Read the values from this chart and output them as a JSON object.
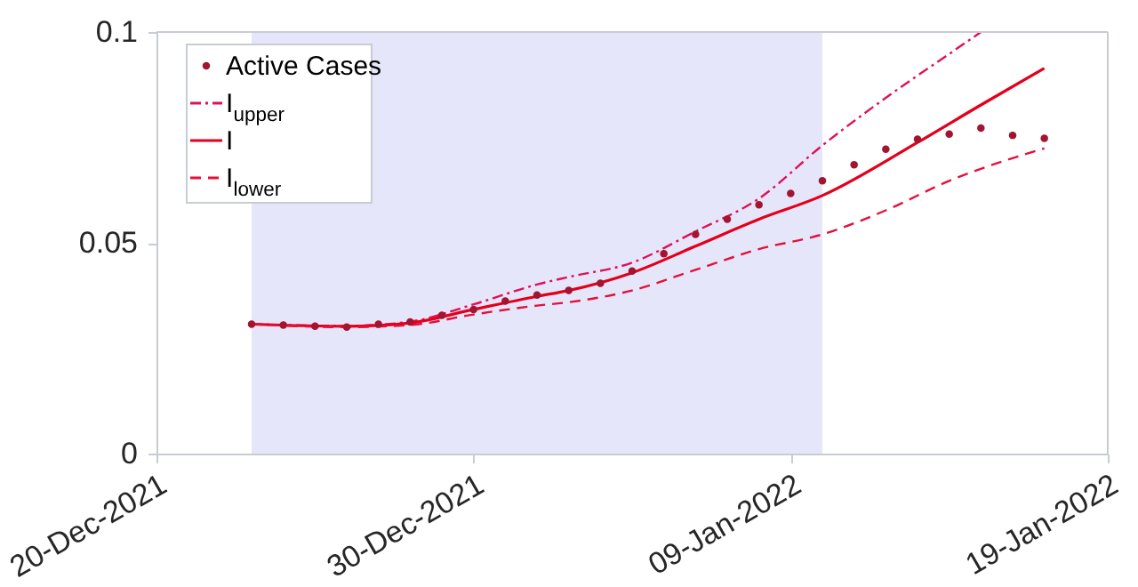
{
  "chart_data": {
    "type": "line",
    "xlim": [
      "2021-12-20",
      "2022-01-19"
    ],
    "xticks": [
      {
        "value": "2021-12-20",
        "label": "20-Dec-2021"
      },
      {
        "value": "2021-12-30",
        "label": "30-Dec-2021"
      },
      {
        "value": "2022-01-09",
        "label": "09-Jan-2022"
      },
      {
        "value": "2022-01-19",
        "label": "19-Jan-2022"
      }
    ],
    "ylim": [
      0,
      0.1
    ],
    "yticks": [
      0,
      0.05,
      0.1
    ],
    "grid": false,
    "legend": "top left",
    "bands": [
      {
        "axis": "x",
        "from": "2021-12-23",
        "to": "2022-01-10",
        "color": "#e6e6fa"
      }
    ],
    "series": [
      {
        "name": "Active Cases",
        "type": "scatter",
        "marker": "circle",
        "color": "#a2142f",
        "x": [
          "2021-12-23",
          "2021-12-24",
          "2021-12-25",
          "2021-12-26",
          "2021-12-27",
          "2021-12-28",
          "2021-12-29",
          "2021-12-30",
          "2021-12-31",
          "2022-01-01",
          "2022-01-02",
          "2022-01-03",
          "2022-01-04",
          "2022-01-05",
          "2022-01-06",
          "2022-01-07",
          "2022-01-08",
          "2022-01-09",
          "2022-01-10",
          "2022-01-11",
          "2022-01-12",
          "2022-01-13",
          "2022-01-14",
          "2022-01-15",
          "2022-01-16",
          "2022-01-17"
        ],
        "values": [
          0.0307,
          0.0305,
          0.0302,
          0.03,
          0.0307,
          0.0312,
          0.0328,
          0.0342,
          0.0362,
          0.0376,
          0.0387,
          0.0404,
          0.0433,
          0.0474,
          0.052,
          0.0556,
          0.059,
          0.0617,
          0.0647,
          0.0685,
          0.0722,
          0.0746,
          0.0758,
          0.0772,
          0.0755,
          0.0748
        ]
      },
      {
        "name": "I$_{upper}$",
        "line_style": "dashdot",
        "color": "#e0105a",
        "x": [
          "2021-12-23",
          "2021-12-26",
          "2021-12-28",
          "2021-12-30",
          "2022-01-01",
          "2022-01-02",
          "2022-01-04",
          "2022-01-06",
          "2022-01-08",
          "2022-01-10",
          "2022-01-12",
          "2022-01-14",
          "2022-01-15"
        ],
        "values": [
          0.0307,
          0.0303,
          0.0313,
          0.0354,
          0.0401,
          0.0419,
          0.0453,
          0.0527,
          0.0605,
          0.0731,
          0.0844,
          0.0948,
          0.1
        ]
      },
      {
        "name": "I",
        "line_style": "solid",
        "color": "#e3001b",
        "x": [
          "2021-12-23",
          "2021-12-26",
          "2021-12-28",
          "2021-12-30",
          "2022-01-01",
          "2022-01-02",
          "2022-01-04",
          "2022-01-06",
          "2022-01-08",
          "2022-01-10",
          "2022-01-13",
          "2022-01-15",
          "2022-01-17"
        ],
        "values": [
          0.0307,
          0.0302,
          0.031,
          0.0342,
          0.0373,
          0.0387,
          0.0429,
          0.0492,
          0.0556,
          0.0612,
          0.0738,
          0.0827,
          0.0914
        ]
      },
      {
        "name": "I$_{lower}$",
        "line_style": "dashed",
        "color": "#e3103a",
        "x": [
          "2021-12-23",
          "2021-12-26",
          "2021-12-28",
          "2021-12-30",
          "2022-01-01",
          "2022-01-02",
          "2022-01-04",
          "2022-01-06",
          "2022-01-08",
          "2022-01-10",
          "2022-01-12",
          "2022-01-14",
          "2022-01-17"
        ],
        "values": [
          0.0307,
          0.03,
          0.0305,
          0.033,
          0.0351,
          0.0359,
          0.0387,
          0.0436,
          0.0485,
          0.052,
          0.0577,
          0.0647,
          0.0724
        ]
      }
    ]
  }
}
